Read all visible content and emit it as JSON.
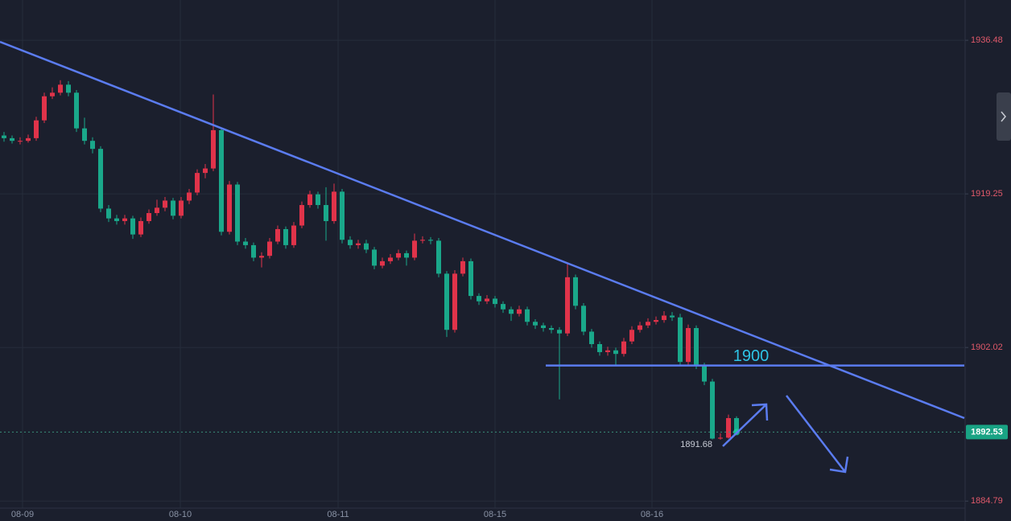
{
  "chart_data": {
    "type": "candlestick",
    "up_color": "#e0334a",
    "down_color": "#1aa88a",
    "grid": true,
    "xlim": [
      -0.5,
      119.3
    ],
    "ylim": [
      1884,
      1941
    ],
    "yticks": [
      1936.48,
      1919.25,
      1902.02,
      1884.79
    ],
    "xticks": [
      {
        "value": 2.3,
        "label": "08-09"
      },
      {
        "value": 21.9,
        "label": "08-10"
      },
      {
        "value": 41.5,
        "label": "08-11"
      },
      {
        "value": 61,
        "label": "08-15"
      },
      {
        "value": 80.5,
        "label": "08-16"
      }
    ],
    "level": 1900,
    "open": [
      1925.8,
      1925.5,
      1925.2,
      1925.2,
      1925.5,
      1927.5,
      1930.2,
      1930.6,
      1931.5,
      1930.6,
      1926.6,
      1925.2,
      1924.3,
      1917.6,
      1916.5,
      1916.2,
      1916.5,
      1914.7,
      1916.2,
      1917.1,
      1917.7,
      1918.5,
      1916.8,
      1918.5,
      1919.4,
      1921.6,
      1922.1,
      1926.4,
      1915.0,
      1920.3,
      1913.9,
      1913.5,
      1912.1,
      1912.3,
      1913.9,
      1915.3,
      1913.5,
      1915.7,
      1918.0,
      1919.2,
      1918.0,
      1916.2,
      1919.5,
      1914.1,
      1913.5,
      1913.7,
      1913.0,
      1911.2,
      1911.7,
      1912.1,
      1912.6,
      1912.1,
      1914.0,
      1914.1,
      1914.0,
      1910.3,
      1904.0,
      1910.3,
      1911.7,
      1907.8,
      1907.2,
      1907.5,
      1906.9,
      1906.3,
      1905.8,
      1906.3,
      1904.9,
      1904.5,
      1904.2,
      1904.0,
      1903.6,
      1909.9,
      1906.7,
      1903.8,
      1902.4,
      1901.5,
      1901.7,
      1901.3,
      1902.7,
      1904.0,
      1904.5,
      1904.9,
      1905.1,
      1905.6,
      1905.4,
      1900.4,
      1904.2,
      1900.0,
      1898.2,
      1891.8,
      1891.9,
      1894.1
    ],
    "high": [
      1926.2,
      1925.8,
      1925.6,
      1925.9,
      1927.9,
      1930.6,
      1931.2,
      1932.0,
      1931.9,
      1930.9,
      1927.8,
      1925.6,
      1924.6,
      1918.0,
      1916.9,
      1916.9,
      1916.8,
      1916.6,
      1917.5,
      1918.6,
      1918.9,
      1918.8,
      1918.9,
      1919.8,
      1922.0,
      1922.6,
      1930.4,
      1926.7,
      1920.7,
      1920.6,
      1914.3,
      1913.8,
      1912.7,
      1914.3,
      1915.7,
      1915.6,
      1916.1,
      1918.4,
      1919.6,
      1919.5,
      1920.0,
      1920.4,
      1919.8,
      1914.5,
      1914.1,
      1914.1,
      1913.3,
      1912.1,
      1912.5,
      1913.0,
      1912.9,
      1914.8,
      1914.5,
      1914.4,
      1914.3,
      1910.6,
      1910.7,
      1912.1,
      1912.0,
      1908.1,
      1907.9,
      1907.8,
      1907.2,
      1906.6,
      1906.7,
      1906.6,
      1905.2,
      1904.8,
      1904.5,
      1904.3,
      1911.4,
      1910.2,
      1907.0,
      1904.1,
      1902.7,
      1902.1,
      1902.0,
      1903.1,
      1904.4,
      1904.9,
      1905.3,
      1905.5,
      1906.1,
      1906.0,
      1905.8,
      1904.6,
      1904.5,
      1900.3,
      1898.5,
      1892.4,
      1894.5,
      1894.3
    ],
    "low": [
      1925.1,
      1924.9,
      1924.8,
      1925.0,
      1925.2,
      1927.2,
      1929.9,
      1930.3,
      1930.2,
      1926.2,
      1924.8,
      1923.8,
      1917.2,
      1916.1,
      1915.8,
      1915.8,
      1914.2,
      1914.4,
      1915.9,
      1916.8,
      1917.3,
      1916.4,
      1916.5,
      1918.1,
      1919.1,
      1921.0,
      1921.8,
      1914.6,
      1914.7,
      1913.5,
      1913.1,
      1911.7,
      1911.0,
      1912.0,
      1913.6,
      1913.1,
      1913.2,
      1915.4,
      1917.7,
      1917.6,
      1914.0,
      1915.9,
      1913.7,
      1913.1,
      1913.1,
      1912.6,
      1910.8,
      1910.9,
      1911.4,
      1911.8,
      1911.2,
      1911.8,
      1913.7,
      1913.6,
      1909.9,
      1903.2,
      1903.7,
      1910.0,
      1907.4,
      1906.8,
      1906.9,
      1906.5,
      1905.9,
      1905.0,
      1905.5,
      1904.5,
      1904.1,
      1903.8,
      1903.6,
      1896.2,
      1903.3,
      1906.3,
      1903.4,
      1902.0,
      1901.1,
      1901.1,
      1900.0,
      1901.0,
      1902.4,
      1903.7,
      1904.2,
      1904.6,
      1904.8,
      1905.0,
      1900.0,
      1900.1,
      1899.6,
      1897.8,
      1891.7,
      1891.68,
      1891.8,
      1892.3
    ],
    "close": [
      1925.5,
      1925.2,
      1925.2,
      1925.5,
      1927.5,
      1930.2,
      1930.6,
      1931.5,
      1930.6,
      1926.6,
      1925.2,
      1924.3,
      1917.6,
      1916.5,
      1916.2,
      1916.5,
      1914.7,
      1916.2,
      1917.1,
      1917.7,
      1918.5,
      1916.8,
      1918.5,
      1919.4,
      1921.6,
      1922.1,
      1926.4,
      1915.0,
      1920.3,
      1913.9,
      1913.5,
      1912.1,
      1912.3,
      1913.9,
      1915.3,
      1913.5,
      1915.7,
      1918.0,
      1919.2,
      1918.0,
      1916.2,
      1919.5,
      1914.1,
      1913.5,
      1913.7,
      1913.0,
      1911.2,
      1911.7,
      1912.1,
      1912.6,
      1912.1,
      1914.0,
      1914.1,
      1914.0,
      1910.3,
      1904.0,
      1910.3,
      1911.7,
      1907.8,
      1907.2,
      1907.5,
      1906.9,
      1906.3,
      1905.8,
      1906.3,
      1904.9,
      1904.5,
      1904.2,
      1904.0,
      1903.6,
      1909.9,
      1906.7,
      1903.8,
      1902.4,
      1901.5,
      1901.7,
      1901.3,
      1902.7,
      1904.0,
      1904.5,
      1904.9,
      1905.1,
      1905.6,
      1905.4,
      1900.4,
      1904.2,
      1900.0,
      1898.2,
      1891.8,
      1891.9,
      1894.1,
      1892.53
    ]
  }
}
